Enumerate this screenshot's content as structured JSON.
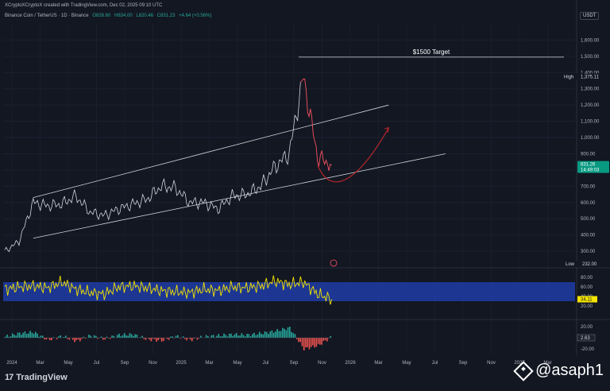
{
  "header": {
    "created_by": "XCryptoXCryptoX created with TradingView.com, Dec 02, 2025 09:10 UTC"
  },
  "symbol": {
    "name": "Binance Coin / TetherUS · 1D · Binance",
    "open": "O826.60",
    "high": "H834.00",
    "low": "L820.46",
    "close": "C831.23",
    "change": "+4.64 (+0.56%)",
    "currency": "USDT"
  },
  "annotations": {
    "target_label": "$1500 Target",
    "high_label": "High",
    "high_value": "1,375.11",
    "low_label": "Low",
    "low_value": "232.00",
    "price_badge": "831.26",
    "countdown": "14:49:03",
    "rsi_badge": "34.11",
    "macd_badge": "2.63"
  },
  "footer": {
    "brand": "TradingView",
    "brand_mark": "17",
    "watermark": "@asaph1"
  },
  "colors": {
    "background": "#131722",
    "price_line": "#f7525f",
    "price_line_rise": "#d1d4dc",
    "rsi_line": "#f5e400",
    "rsi_band": "#1e3a9e",
    "projection": "#b2272a",
    "up_hist": "#26a69a",
    "down_hist": "#ef5350"
  },
  "chart_data": [
    {
      "type": "line",
      "title": "Binance Coin / TetherUS · 1D · Binance",
      "x": [
        "2024-01",
        "2024-02",
        "2024-03",
        "2024-04",
        "2024-05",
        "2024-06",
        "2024-07",
        "2024-08",
        "2024-09",
        "2024-10",
        "2024-11",
        "2024-12",
        "2025-01",
        "2025-02",
        "2025-03",
        "2025-04",
        "2025-05",
        "2025-06",
        "2025-07",
        "2025-08",
        "2025-09",
        "2025-10",
        "2025-11",
        "2025-12"
      ],
      "y": [
        300,
        360,
        600,
        580,
        590,
        640,
        540,
        520,
        560,
        590,
        620,
        700,
        690,
        600,
        600,
        560,
        640,
        650,
        700,
        820,
        900,
        1375,
        880,
        831
      ],
      "ylim": [
        232,
        1700
      ],
      "yticks": [
        "300.00",
        "400.00",
        "500.00",
        "600.00",
        "700.00",
        "800.00",
        "900.00",
        "1,000.00",
        "1,100.00",
        "1,200.00",
        "1,300.00",
        "1,400.00",
        "1,500.00",
        "1,600.00"
      ],
      "ytick_values": [
        300,
        400,
        500,
        600,
        700,
        800,
        900,
        1000,
        1100,
        1200,
        1300,
        1400,
        1500,
        1600
      ],
      "xticks": [
        "2024",
        "Mar",
        "May",
        "Jul",
        "Sep",
        "Nov",
        "2025",
        "Mar",
        "May",
        "Jul",
        "Sep",
        "Nov",
        "2026",
        "Mar",
        "May",
        "Jul",
        "Sep",
        "Nov",
        "2027",
        "Mar"
      ],
      "channel_upper": [
        [
          "2024-03",
          630
        ],
        [
          "2026-04",
          1200
        ]
      ],
      "channel_lower": [
        [
          "2024-03",
          380
        ],
        [
          "2026-08",
          900
        ]
      ],
      "projection": [
        [
          "2025-11",
          831
        ],
        [
          "2025-12",
          740
        ],
        [
          "2026-02",
          800
        ],
        [
          "2026-04",
          1060
        ]
      ],
      "target": 1500
    },
    {
      "type": "line",
      "title": "RSI",
      "y": [
        55,
        60,
        62,
        58,
        70,
        55,
        48,
        45,
        60,
        62,
        58,
        52,
        50,
        48,
        55,
        52,
        60,
        58,
        62,
        72,
        65,
        70,
        45,
        34.11
      ],
      "yticks": [
        "20.00",
        "40.00",
        "60.00",
        "80.00"
      ],
      "ytick_values": [
        20,
        40,
        60,
        80
      ],
      "band": [
        30,
        70
      ]
    },
    {
      "type": "bar",
      "title": "MACD",
      "values": [
        2,
        8,
        10,
        -4,
        3,
        -6,
        4,
        -2,
        5,
        6,
        -3,
        -5,
        3,
        -4,
        2,
        4,
        6,
        5,
        8,
        12,
        18,
        -20,
        -14,
        2.63
      ],
      "yticks": [
        "20.00",
        "0.00",
        "-20.00"
      ],
      "ytick_values": [
        20,
        0,
        -20
      ]
    }
  ]
}
